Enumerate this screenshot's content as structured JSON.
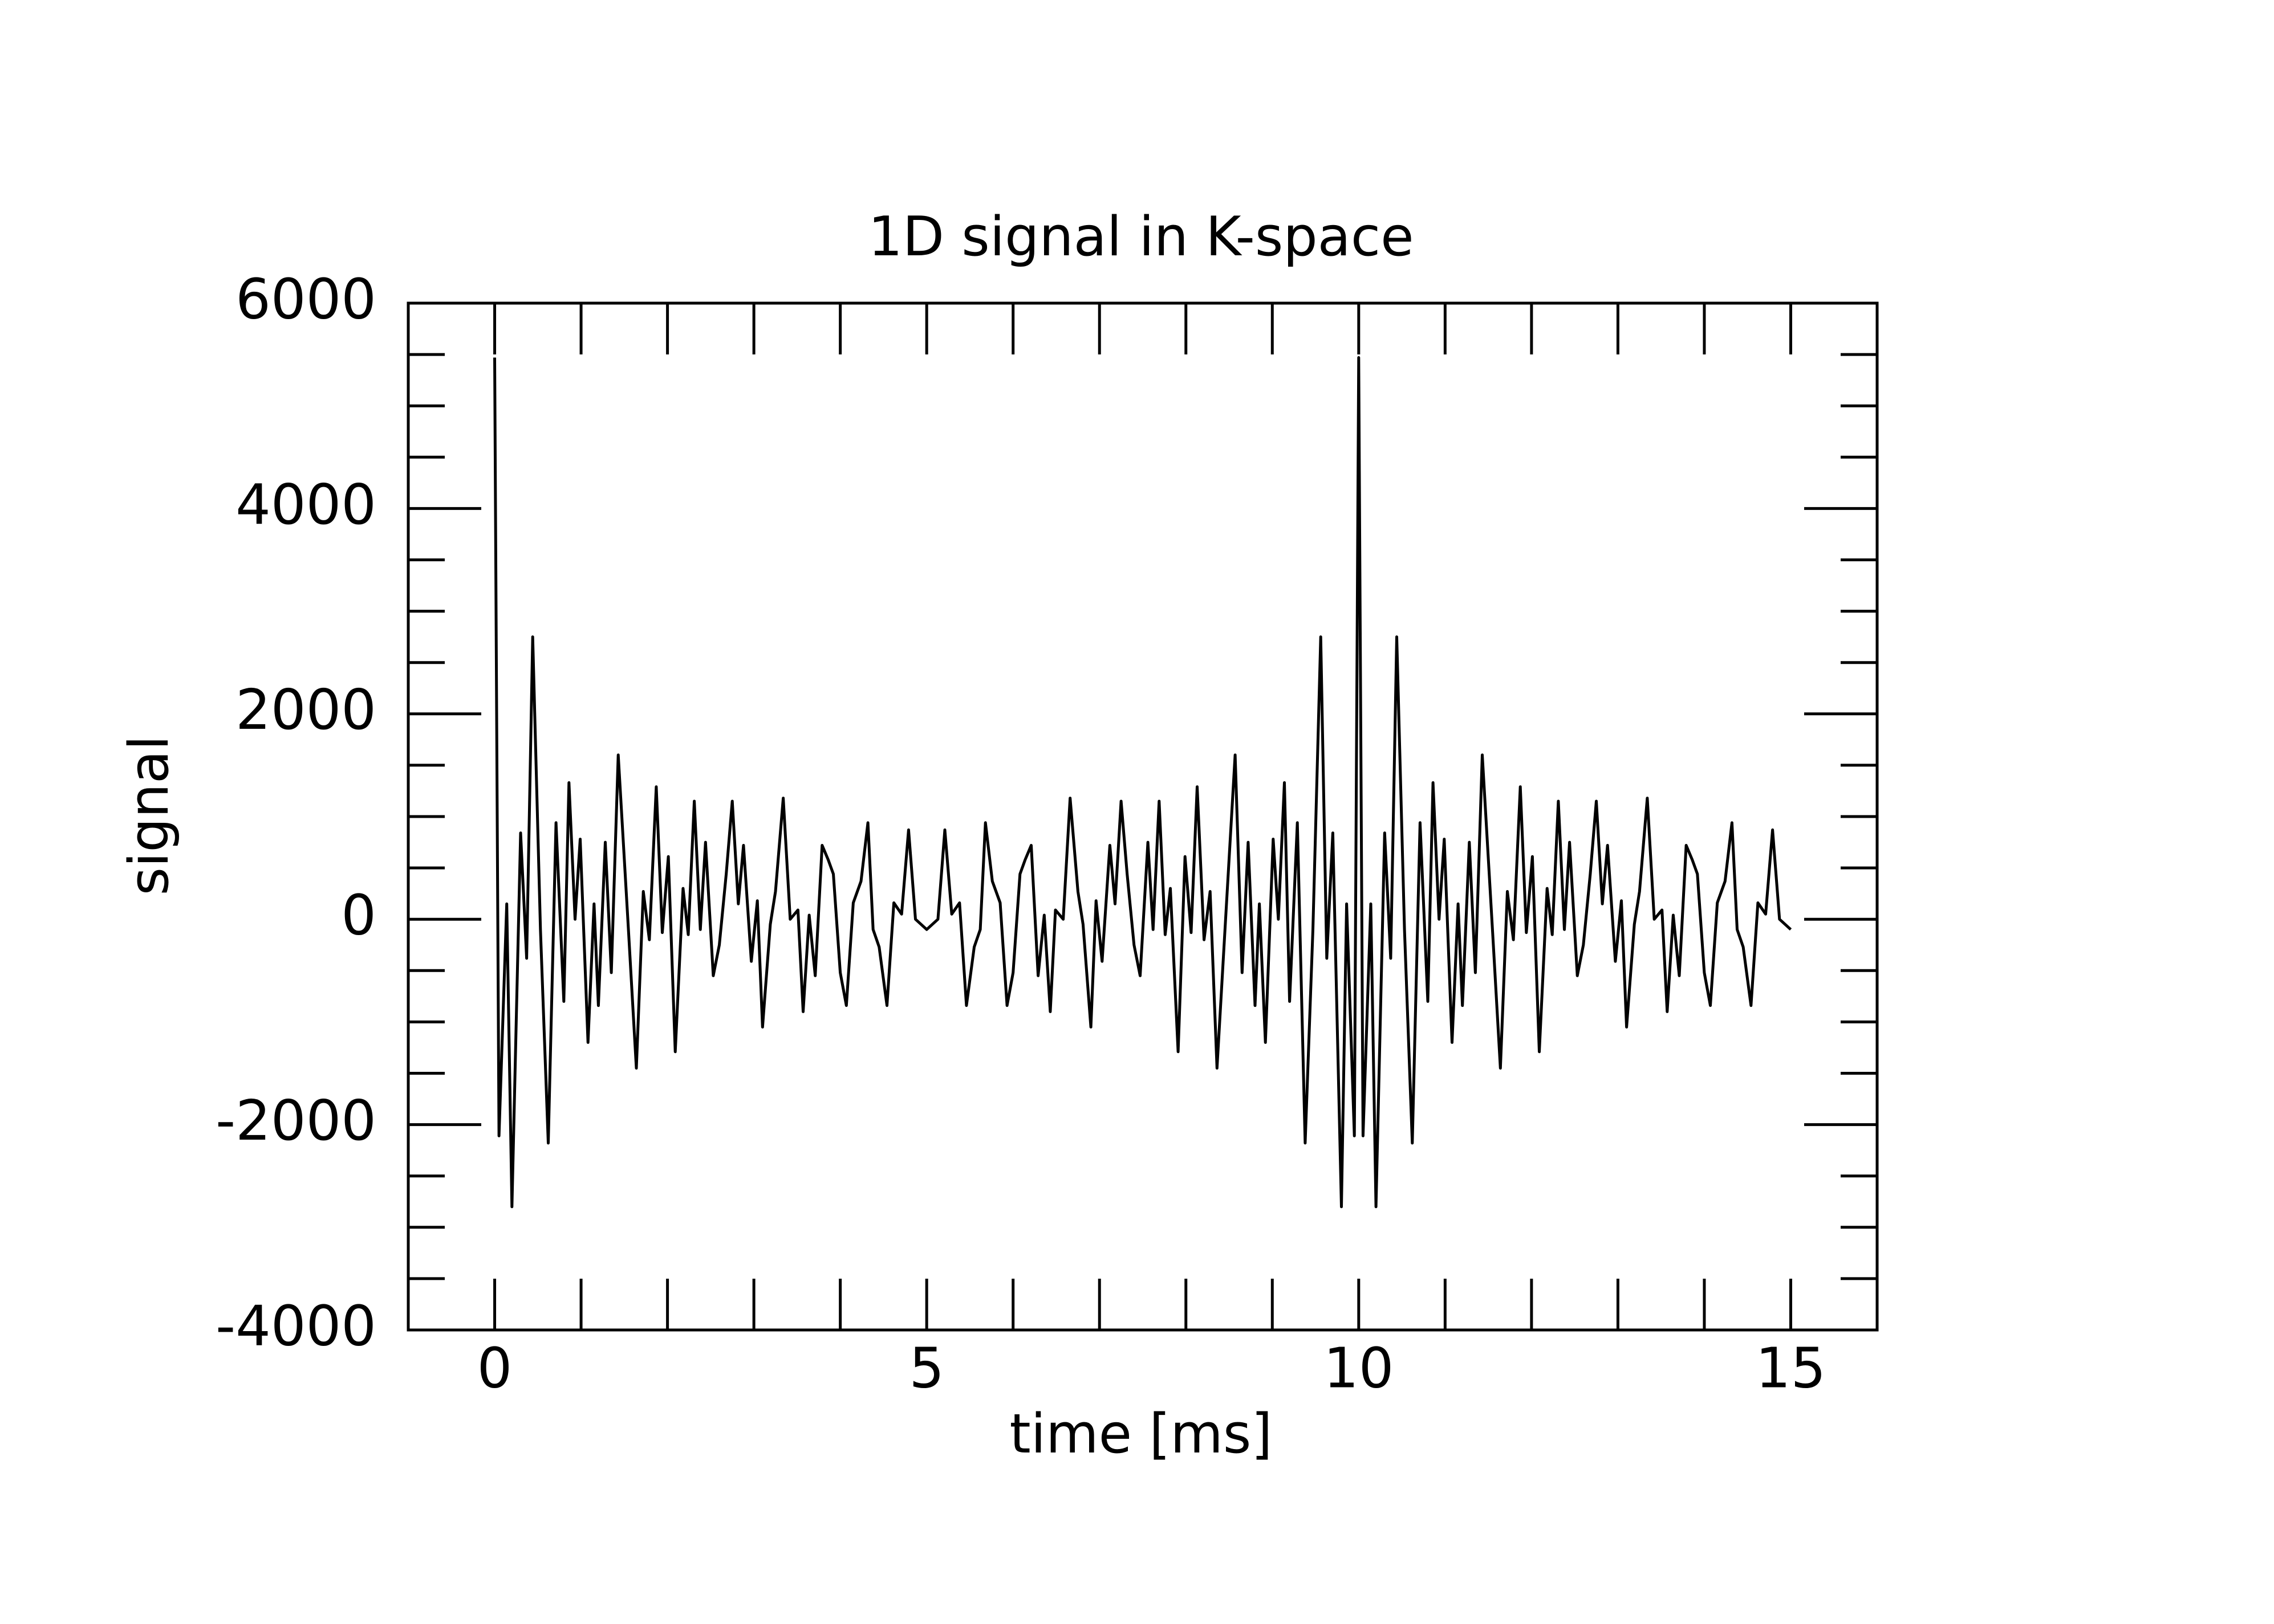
{
  "chart_data": {
    "type": "line",
    "title": "1D signal in K-space",
    "x_label": "time [ms]",
    "y_label": "signal",
    "color": "#000000",
    "xlim": [
      -1,
      16
    ],
    "ylim": [
      -4000,
      6000
    ],
    "xticks": [
      0,
      5,
      10,
      15
    ],
    "yticks": [
      -4000,
      -2000,
      0,
      2000,
      4000,
      6000
    ],
    "xminor": [
      1,
      2,
      3,
      4,
      6,
      7,
      8,
      9,
      11,
      12,
      13,
      14
    ],
    "yminor": [
      -3500,
      -3000,
      -2500,
      -1500,
      -1000,
      -500,
      500,
      1000,
      1500,
      2500,
      3000,
      3500,
      4500,
      5000,
      5500
    ],
    "x": [
      0,
      0.05,
      0.14,
      0.2,
      0.3,
      0.37,
      0.44,
      0.53,
      0.62,
      0.71,
      0.8,
      0.86,
      0.93,
      0.99,
      1.08,
      1.15,
      1.2,
      1.28,
      1.35,
      1.43,
      1.55,
      1.64,
      1.72,
      1.79,
      1.87,
      1.94,
      2.01,
      2.09,
      2.18,
      2.24,
      2.31,
      2.38,
      2.44,
      2.53,
      2.6,
      2.68,
      2.75,
      2.82,
      2.88,
      2.97,
      3.04,
      3.1,
      3.19,
      3.25,
      3.34,
      3.42,
      3.51,
      3.57,
      3.64,
      3.71,
      3.79,
      3.86,
      3.92,
      4.0,
      4.07,
      4.15,
      4.24,
      4.32,
      4.38,
      4.45,
      4.54,
      4.62,
      4.71,
      4.79,
      4.87,
      5.0,
      5.13,
      5.21,
      5.29,
      5.38,
      5.46,
      5.55,
      5.62,
      5.68,
      5.76,
      5.85,
      5.93,
      6.0,
      6.08,
      6.14,
      6.21,
      6.29,
      6.36,
      6.43,
      6.49,
      6.58,
      6.66,
      6.75,
      6.81,
      6.9,
      6.96,
      7.03,
      7.12,
      7.18,
      7.25,
      7.32,
      7.4,
      7.47,
      7.56,
      7.62,
      7.69,
      7.76,
      7.82,
      7.91,
      7.99,
      8.06,
      8.13,
      8.21,
      8.28,
      8.36,
      8.45,
      8.57,
      8.65,
      8.72,
      8.8,
      8.85,
      8.92,
      9.01,
      9.07,
      9.14,
      9.2,
      9.29,
      9.38,
      9.47,
      9.56,
      9.63,
      9.7,
      9.8,
      9.86,
      9.95,
      10.0,
      10.05,
      10.14,
      10.2,
      10.3,
      10.37,
      10.44,
      10.53,
      10.62,
      10.71,
      10.8,
      10.86,
      10.93,
      10.99,
      11.08,
      11.15,
      11.2,
      11.28,
      11.35,
      11.43,
      11.55,
      11.64,
      11.72,
      11.79,
      11.87,
      11.94,
      12.01,
      12.09,
      12.18,
      12.24,
      12.31,
      12.38,
      12.44,
      12.53,
      12.6,
      12.68,
      12.75,
      12.82,
      12.88,
      12.97,
      13.04,
      13.1,
      13.19,
      13.25,
      13.34,
      13.42,
      13.51,
      13.57,
      13.64,
      13.71,
      13.79,
      13.86,
      13.92,
      14.0,
      14.07,
      14.15,
      14.24,
      14.32,
      14.38,
      14.45,
      14.54,
      14.62,
      14.71,
      14.79,
      14.87,
      15.0
    ],
    "values": [
      5470,
      -2110,
      150,
      -2800,
      840,
      -380,
      2750,
      -100,
      -2180,
      940,
      -800,
      1330,
      0,
      780,
      -1200,
      150,
      -840,
      750,
      -520,
      1600,
      -130,
      -1450,
      270,
      -200,
      1290,
      -130,
      610,
      -1290,
      300,
      -150,
      1150,
      -100,
      750,
      -550,
      -250,
      440,
      1150,
      150,
      720,
      -410,
      180,
      -1050,
      -50,
      270,
      1180,
      0,
      90,
      -900,
      40,
      -550,
      720,
      580,
      440,
      -520,
      -840,
      160,
      370,
      940,
      -100,
      -270,
      -840,
      160,
      50,
      870,
      0,
      -100,
      0,
      870,
      50,
      160,
      -840,
      -270,
      -100,
      940,
      370,
      160,
      -840,
      -520,
      440,
      580,
      720,
      -550,
      40,
      -900,
      90,
      0,
      1180,
      270,
      -50,
      -1050,
      180,
      -410,
      720,
      150,
      1150,
      440,
      -250,
      -550,
      750,
      -100,
      1150,
      -150,
      300,
      -1290,
      610,
      -130,
      1290,
      -200,
      270,
      -1450,
      -130,
      1600,
      -520,
      750,
      -840,
      150,
      -1200,
      780,
      0,
      1330,
      -800,
      940,
      -2180,
      -100,
      2750,
      -380,
      840,
      -2800,
      150,
      -2110,
      5470,
      -2110,
      150,
      -2800,
      840,
      -380,
      2750,
      -100,
      -2180,
      940,
      -800,
      1330,
      0,
      780,
      -1200,
      150,
      -840,
      750,
      -520,
      1600,
      -130,
      -1450,
      270,
      -200,
      1290,
      -130,
      610,
      -1290,
      300,
      -150,
      1150,
      -100,
      750,
      -550,
      -250,
      440,
      1150,
      150,
      720,
      -410,
      180,
      -1050,
      -50,
      270,
      1180,
      0,
      90,
      -900,
      40,
      -550,
      720,
      580,
      440,
      -520,
      -840,
      160,
      370,
      940,
      -100,
      -270,
      -840,
      160,
      50,
      870,
      0,
      -100
    ]
  }
}
